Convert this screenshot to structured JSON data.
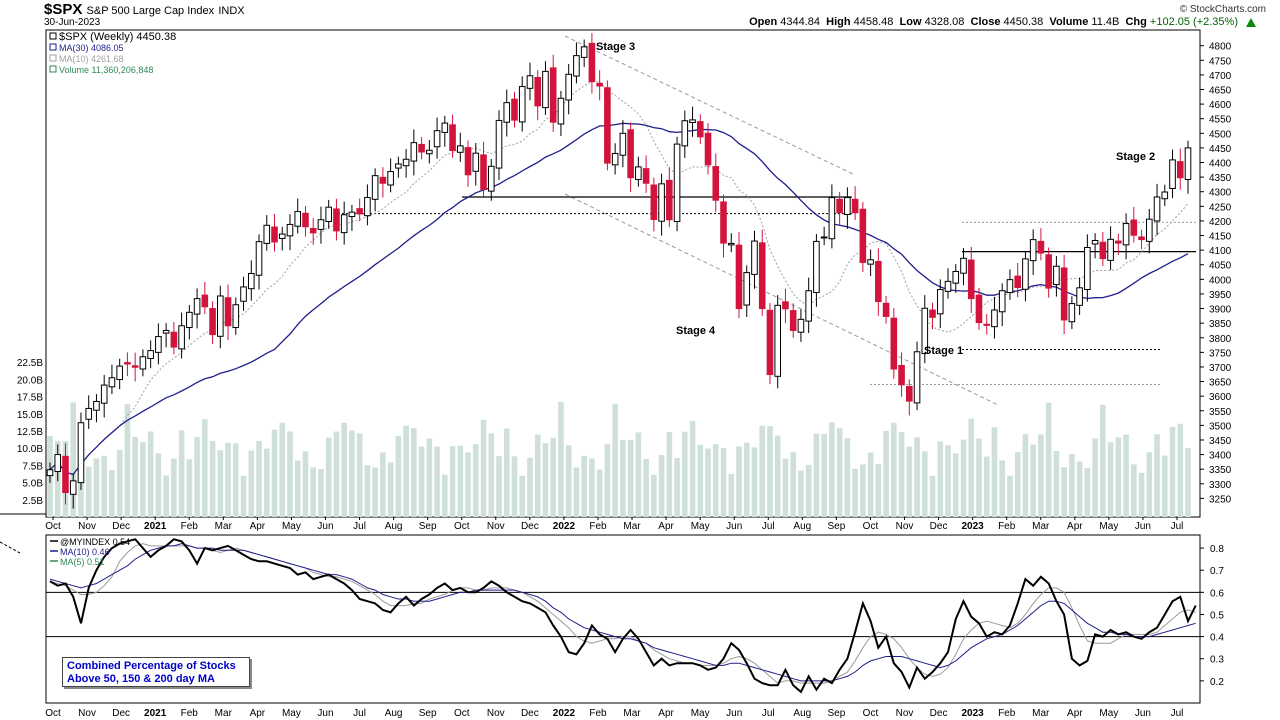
{
  "header": {
    "symbol": "$SPX",
    "name": "S&P 500 Large Cap Index",
    "exchange": "INDX",
    "date": "30-Jun-2023",
    "copyright": "© StockCharts.com",
    "ohlc": {
      "open_label": "Open",
      "open": "4344.84",
      "high_label": "High",
      "high": "4458.48",
      "low_label": "Low",
      "low": "4328.08",
      "close_label": "Close",
      "close": "4450.38",
      "volume_label": "Volume",
      "volume": "11.4B",
      "chg_label": "Chg",
      "chg": "+102.05 (+2.35%)"
    }
  },
  "colors": {
    "up": "#ffffff",
    "down": "#d2143c",
    "ma30": "#1e1e8c",
    "ma10": "#a0a0a0",
    "volume": "#cfe0d8",
    "chg_positive": "#008000",
    "box_text": "#0000cc"
  },
  "chart_data": [
    {
      "type": "candlestick",
      "title": "$SPX (Weekly) 4450.38",
      "legend": [
        {
          "name": "$SPX (Weekly) 4450.38"
        },
        {
          "name": "MA(30) 4086.05",
          "color": "#1e1e8c"
        },
        {
          "name": "MA(10) 4261.68",
          "color": "#a0a0a0"
        },
        {
          "name": "Volume 11,360,206,848",
          "color": "#2e8b57"
        }
      ],
      "y_ticks": [
        3250,
        3300,
        3350,
        3400,
        3450,
        3500,
        3550,
        3600,
        3650,
        3700,
        3750,
        3800,
        3850,
        3900,
        3950,
        4000,
        4050,
        4100,
        4150,
        4200,
        4250,
        4300,
        4350,
        4400,
        4450,
        4500,
        4550,
        4600,
        4650,
        4700,
        4750,
        4800
      ],
      "ylim": [
        3200,
        4840
      ],
      "volume_ticks": [
        "2.5B",
        "5.0B",
        "7.5B",
        "10.0B",
        "12.5B",
        "15.0B",
        "17.5B",
        "20.0B",
        "22.5B"
      ],
      "volume_ylim": [
        0,
        25
      ],
      "x_labels": [
        "Oct",
        "Nov",
        "Dec",
        "2021",
        "Feb",
        "Mar",
        "Apr",
        "May",
        "Jun",
        "Jul",
        "Aug",
        "Sep",
        "Oct",
        "Nov",
        "Dec",
        "2022",
        "Feb",
        "Mar",
        "Apr",
        "May",
        "Jun",
        "Jul",
        "Aug",
        "Sep",
        "Oct",
        "Nov",
        "Dec",
        "2023",
        "Feb",
        "Mar",
        "Apr",
        "May",
        "Jun",
        "Jul"
      ],
      "close": [
        3348,
        3400,
        3270,
        3310,
        3509,
        3558,
        3582,
        3638,
        3663,
        3703,
        3710,
        3699,
        3735,
        3756,
        3804,
        3825,
        3768,
        3841,
        3887,
        3934,
        3906,
        3811,
        3943,
        3841,
        3913,
        3974,
        4020,
        4129,
        4185,
        4128,
        4155,
        4188,
        4232,
        4180,
        4159,
        4204,
        4247,
        4166,
        4221,
        4230,
        4224,
        4280,
        4355,
        4329,
        4369,
        4395,
        4411,
        4468,
        4436,
        4442,
        4509,
        4535,
        4441,
        4457,
        4358,
        4432,
        4308,
        4387,
        4544,
        4605,
        4545,
        4660,
        4697,
        4594,
        4712,
        4538,
        4620,
        4702,
        4766,
        4796,
        4677,
        4662,
        4398,
        4431,
        4500,
        4348,
        4385,
        4329,
        4205,
        4327,
        4204,
        4463,
        4543,
        4546,
        4488,
        4392,
        4271,
        4124,
        4123,
        3900,
        4023,
        4131,
        3900,
        3674,
        3911,
        3899,
        3825,
        3863,
        3961,
        4130,
        4145,
        4280,
        4228,
        4280,
        4228,
        4058,
        4067,
        3924,
        3873,
        3693,
        3639,
        3583,
        3752,
        3901,
        3870,
        3965,
        3993,
        4027,
        4072,
        3934,
        3852,
        3844,
        3895,
        3961,
        3999,
        3972,
        4070,
        4136,
        4090,
        3970,
        4045,
        3861,
        3917,
        3971,
        4109,
        4133,
        4071,
        4137,
        4124,
        4191,
        4151,
        4136,
        4206,
        4282,
        4299,
        4409,
        4348,
        4450
      ],
      "ma30_note": "MA(30) plotted",
      "annotations": [
        "Stage 3",
        "Stage 4",
        "Stage 1",
        "Stage 2"
      ],
      "xlabel": "",
      "ylabel": "",
      "grid": false,
      "legend_position": "top-left"
    },
    {
      "type": "line",
      "title": "@MYINDEX 0.54",
      "legend": [
        {
          "name": "@MYINDEX 0.54",
          "color": "#000000"
        },
        {
          "name": "MA(10) 0.46",
          "color": "#1e1e8c"
        },
        {
          "name": "MA(5) 0.51",
          "color": "#2e8b57"
        }
      ],
      "y_ticks": [
        0.2,
        0.3,
        0.4,
        0.5,
        0.6,
        0.7,
        0.8
      ],
      "ylim": [
        0.1,
        0.85
      ],
      "reference_lines": [
        0.4,
        0.6
      ],
      "box_label": [
        "Combined Percentage of Stocks",
        "Above 50, 150 & 200 day MA"
      ],
      "values": [
        0.65,
        0.63,
        0.64,
        0.58,
        0.46,
        0.62,
        0.7,
        0.76,
        0.8,
        0.82,
        0.83,
        0.84,
        0.8,
        0.76,
        0.79,
        0.81,
        0.84,
        0.83,
        0.79,
        0.73,
        0.8,
        0.79,
        0.8,
        0.81,
        0.79,
        0.77,
        0.75,
        0.74,
        0.74,
        0.73,
        0.72,
        0.71,
        0.68,
        0.69,
        0.66,
        0.67,
        0.68,
        0.66,
        0.64,
        0.61,
        0.57,
        0.56,
        0.55,
        0.52,
        0.51,
        0.55,
        0.58,
        0.54,
        0.57,
        0.59,
        0.62,
        0.64,
        0.61,
        0.62,
        0.6,
        0.6,
        0.62,
        0.65,
        0.63,
        0.6,
        0.58,
        0.56,
        0.55,
        0.53,
        0.51,
        0.45,
        0.4,
        0.33,
        0.32,
        0.37,
        0.45,
        0.41,
        0.39,
        0.33,
        0.39,
        0.43,
        0.39,
        0.33,
        0.27,
        0.3,
        0.27,
        0.28,
        0.28,
        0.28,
        0.27,
        0.25,
        0.26,
        0.3,
        0.37,
        0.34,
        0.28,
        0.21,
        0.19,
        0.18,
        0.18,
        0.25,
        0.18,
        0.15,
        0.22,
        0.16,
        0.21,
        0.19,
        0.25,
        0.3,
        0.42,
        0.55,
        0.47,
        0.35,
        0.4,
        0.28,
        0.24,
        0.17,
        0.26,
        0.21,
        0.24,
        0.28,
        0.33,
        0.48,
        0.56,
        0.49,
        0.46,
        0.4,
        0.42,
        0.41,
        0.45,
        0.55,
        0.66,
        0.63,
        0.67,
        0.64,
        0.56,
        0.5,
        0.3,
        0.27,
        0.29,
        0.41,
        0.4,
        0.43,
        0.41,
        0.42,
        0.4,
        0.39,
        0.42,
        0.44,
        0.5,
        0.56,
        0.58,
        0.47,
        0.54
      ],
      "ma10": [
        0.66,
        0.65,
        0.64,
        0.63,
        0.62,
        0.63,
        0.64,
        0.66,
        0.68,
        0.7,
        0.72,
        0.75,
        0.77,
        0.79,
        0.8,
        0.81,
        0.81,
        0.82,
        0.81,
        0.8,
        0.8,
        0.8,
        0.79,
        0.79,
        0.79,
        0.79,
        0.78,
        0.77,
        0.76,
        0.75,
        0.74,
        0.73,
        0.72,
        0.71,
        0.7,
        0.69,
        0.68,
        0.68,
        0.67,
        0.66,
        0.64,
        0.62,
        0.61,
        0.59,
        0.58,
        0.57,
        0.57,
        0.56,
        0.56,
        0.56,
        0.57,
        0.58,
        0.59,
        0.6,
        0.6,
        0.61,
        0.61,
        0.61,
        0.61,
        0.61,
        0.61,
        0.6,
        0.59,
        0.58,
        0.56,
        0.53,
        0.51,
        0.48,
        0.46,
        0.44,
        0.43,
        0.42,
        0.41,
        0.4,
        0.39,
        0.39,
        0.38,
        0.37,
        0.35,
        0.34,
        0.33,
        0.32,
        0.31,
        0.3,
        0.29,
        0.28,
        0.27,
        0.27,
        0.28,
        0.28,
        0.27,
        0.26,
        0.25,
        0.24,
        0.23,
        0.22,
        0.21,
        0.2,
        0.2,
        0.2,
        0.2,
        0.2,
        0.21,
        0.22,
        0.24,
        0.27,
        0.29,
        0.3,
        0.31,
        0.31,
        0.31,
        0.3,
        0.29,
        0.28,
        0.27,
        0.26,
        0.27,
        0.29,
        0.32,
        0.35,
        0.37,
        0.39,
        0.4,
        0.41,
        0.43,
        0.45,
        0.48,
        0.51,
        0.54,
        0.56,
        0.56,
        0.55,
        0.52,
        0.49,
        0.46,
        0.44,
        0.42,
        0.42,
        0.41,
        0.41,
        0.4,
        0.4,
        0.4,
        0.41,
        0.42,
        0.43,
        0.44,
        0.45,
        0.46
      ],
      "ma5": [
        0.65,
        0.64,
        0.63,
        0.61,
        0.59,
        0.59,
        0.6,
        0.63,
        0.67,
        0.74,
        0.78,
        0.81,
        0.82,
        0.81,
        0.81,
        0.81,
        0.81,
        0.81,
        0.81,
        0.8,
        0.8,
        0.79,
        0.78,
        0.79,
        0.8,
        0.79,
        0.78,
        0.77,
        0.76,
        0.75,
        0.74,
        0.73,
        0.72,
        0.71,
        0.69,
        0.68,
        0.67,
        0.67,
        0.66,
        0.65,
        0.63,
        0.61,
        0.59,
        0.56,
        0.54,
        0.54,
        0.54,
        0.55,
        0.55,
        0.57,
        0.58,
        0.59,
        0.61,
        0.62,
        0.62,
        0.61,
        0.61,
        0.62,
        0.62,
        0.62,
        0.61,
        0.6,
        0.58,
        0.56,
        0.53,
        0.5,
        0.47,
        0.44,
        0.4,
        0.38,
        0.37,
        0.38,
        0.39,
        0.39,
        0.4,
        0.4,
        0.38,
        0.37,
        0.34,
        0.32,
        0.3,
        0.29,
        0.28,
        0.28,
        0.27,
        0.27,
        0.27,
        0.28,
        0.3,
        0.31,
        0.3,
        0.28,
        0.25,
        0.22,
        0.19,
        0.2,
        0.2,
        0.19,
        0.19,
        0.19,
        0.19,
        0.2,
        0.22,
        0.24,
        0.29,
        0.35,
        0.4,
        0.42,
        0.41,
        0.39,
        0.35,
        0.3,
        0.26,
        0.23,
        0.22,
        0.23,
        0.26,
        0.32,
        0.39,
        0.43,
        0.46,
        0.47,
        0.46,
        0.45,
        0.44,
        0.46,
        0.5,
        0.55,
        0.59,
        0.62,
        0.62,
        0.6,
        0.53,
        0.45,
        0.38,
        0.37,
        0.37,
        0.37,
        0.39,
        0.41,
        0.41,
        0.41,
        0.41,
        0.42,
        0.45,
        0.48,
        0.51,
        0.52,
        0.51
      ],
      "x_labels": [
        "Oct",
        "Nov",
        "Dec",
        "2021",
        "Feb",
        "Mar",
        "Apr",
        "May",
        "Jun",
        "Jul",
        "Aug",
        "Sep",
        "Oct",
        "Nov",
        "Dec",
        "2022",
        "Feb",
        "Mar",
        "Apr",
        "May",
        "Jun",
        "Jul",
        "Aug",
        "Sep",
        "Oct",
        "Nov",
        "Dec",
        "2023",
        "Feb",
        "Mar",
        "Apr",
        "May",
        "Jun",
        "Jul"
      ]
    }
  ]
}
